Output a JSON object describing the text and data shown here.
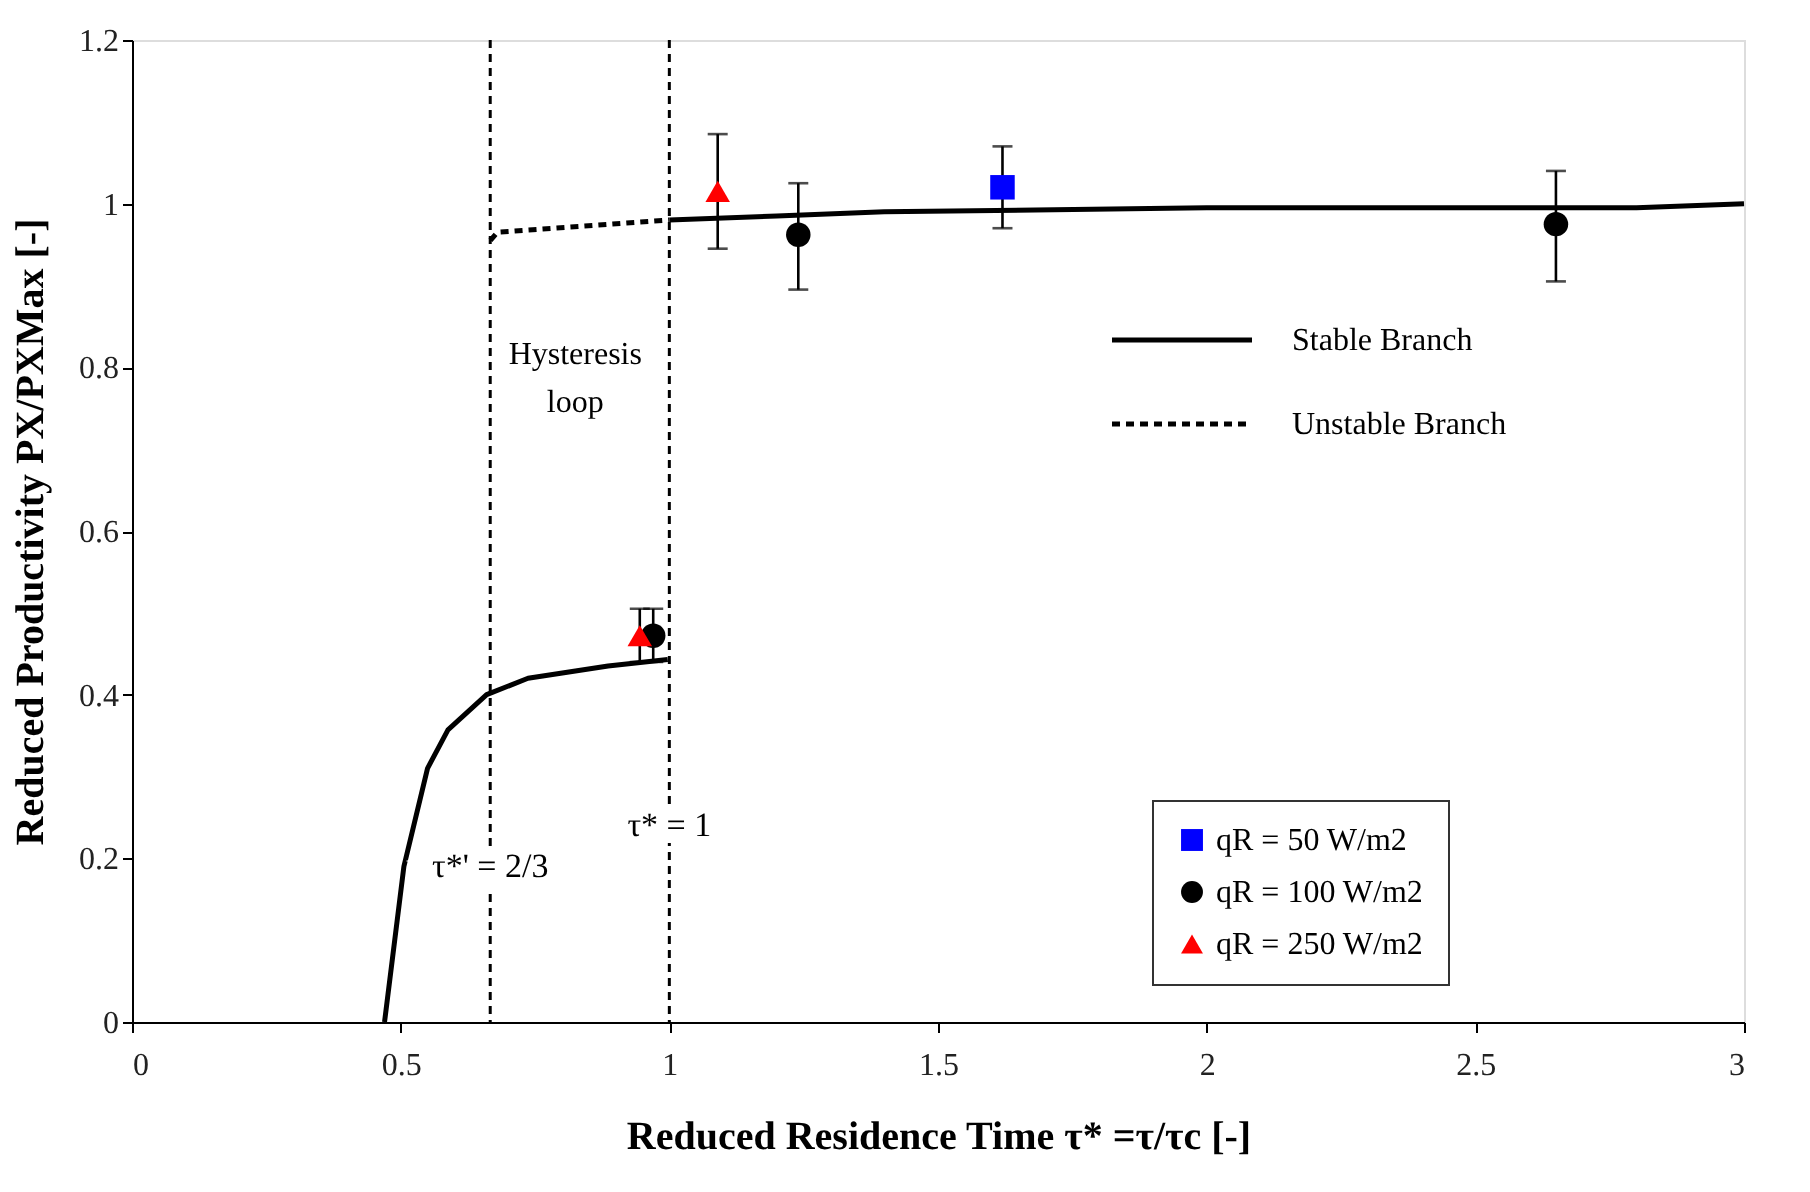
{
  "chart_data": {
    "type": "scatter",
    "xlabel": "Reduced Residence Time τ* =τ/τc [-]",
    "ylabel": "Reduced Productivity PX/PXMax [-]",
    "xlim": [
      0,
      3
    ],
    "xticks": [
      0,
      0.5,
      1,
      1.5,
      2,
      2.5,
      3
    ],
    "ylim": [
      0,
      1.2
    ],
    "yticks": [
      0,
      0.2,
      0.4,
      0.6,
      0.8,
      1,
      1.2
    ],
    "grid": false,
    "legend": "right",
    "series": [
      {
        "name": "Stable Branch",
        "type": "line",
        "line_style": "solid",
        "color": "#000000",
        "x": [
          0.47,
          0.506,
          0.55,
          0.588,
          0.66,
          0.737,
          0.886,
          0.997,
          0.999,
          1.0,
          1.2,
          1.4,
          2.0,
          2.8,
          3.0
        ],
        "values": [
          0,
          0.19,
          0.31,
          0.357,
          0.4,
          0.42,
          0.435,
          0.443,
          null,
          0.98,
          0.985,
          0.99,
          0.995,
          0.995,
          1.0
        ]
      },
      {
        "name": "Unstable Branch",
        "type": "line",
        "line_style": "dashed",
        "color": "#000000",
        "x": [
          0.667,
          0.68,
          1.0
        ],
        "values": [
          0.955,
          0.965,
          0.98
        ]
      },
      {
        "name": "qR = 50 W/m2",
        "marker": "square",
        "color": "#0000ff",
        "x": [
          1.62
        ],
        "values": [
          1.02
        ],
        "errors": [
          [
            0.97,
            1.07
          ]
        ]
      },
      {
        "name": "qR = 100 W/m2",
        "marker": "circle",
        "color": "#000000",
        "x": [
          0.97,
          1.24,
          2.65
        ],
        "values": [
          0.472,
          0.962,
          0.975
        ],
        "errors": [
          [
            0.44,
            0.505
          ],
          [
            0.895,
            1.025
          ],
          [
            0.905,
            1.04
          ]
        ]
      },
      {
        "name": "qR = 250 W/m2",
        "marker": "triangle",
        "color": "#ff0000",
        "x": [
          0.945,
          1.09
        ],
        "values": [
          0.472,
          1.015
        ],
        "errors": [
          [
            0.44,
            0.505
          ],
          [
            0.945,
            1.085
          ]
        ]
      }
    ],
    "ref_lines": [
      {
        "axis": "x",
        "value": 0.666667,
        "line_style": "dashed",
        "color": "#000000"
      },
      {
        "axis": "x",
        "value": 1.0,
        "label": "τ* = 1",
        "line_style": "dashed",
        "color": "#000000"
      }
    ],
    "annotations": [
      "Hysteresis loop",
      {
        "text": "τ*' = 2/3",
        "x": 0.666667,
        "y": 0.19
      }
    ]
  }
}
